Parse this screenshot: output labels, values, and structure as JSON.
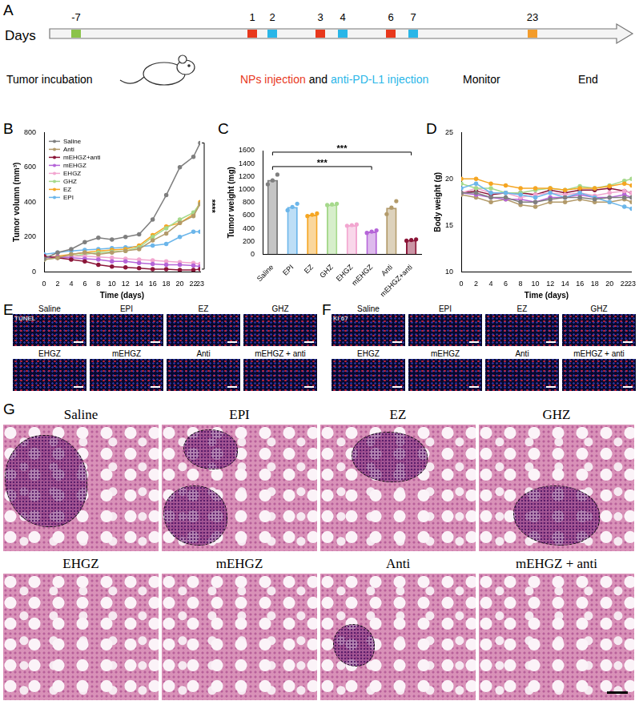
{
  "panel_labels": [
    "A",
    "B",
    "C",
    "D",
    "E",
    "F",
    "G"
  ],
  "timeline": {
    "axis_label": "Days",
    "days": [
      {
        "label": "-7",
        "color": "#8bc34a"
      },
      {
        "label": "1",
        "color": "#e8381c"
      },
      {
        "label": "2",
        "color": "#29b6e8"
      },
      {
        "label": "3",
        "color": "#e8381c"
      },
      {
        "label": "4",
        "color": "#29b6e8"
      },
      {
        "label": "6",
        "color": "#e8381c"
      },
      {
        "label": "7",
        "color": "#29b6e8"
      },
      {
        "label": "23",
        "color": "#f39c2b"
      }
    ],
    "incubation": "Tumor incubation",
    "np_text": "NPs injection",
    "np_color": "#e8381c",
    "and_text": "and",
    "anti_text": "anti-PD-L1 injection",
    "anti_color": "#29b6e8",
    "monitor": "Monitor",
    "end": "End"
  },
  "chart_data": [
    {
      "type": "line",
      "x_label": "Time (days)",
      "y_label": "Tumor volumn (mm³)",
      "x": [
        0,
        2,
        4,
        6,
        8,
        10,
        12,
        14,
        16,
        18,
        20,
        22,
        23
      ],
      "xlim": [
        0,
        23
      ],
      "xticks": [
        0,
        2,
        4,
        6,
        8,
        10,
        12,
        14,
        16,
        18,
        20,
        22,
        23
      ],
      "ylim": [
        0,
        800
      ],
      "yticks": [
        0,
        200,
        400,
        600,
        800
      ],
      "grid": false,
      "marker": "circle",
      "legend": "upper left",
      "series": [
        {
          "name": "Saline",
          "color": "#7f7f7f",
          "values": [
            75,
            110,
            130,
            170,
            195,
            185,
            200,
            215,
            300,
            440,
            600,
            660,
            740
          ]
        },
        {
          "name": "Anti",
          "color": "#b39b6b",
          "values": [
            70,
            80,
            100,
            110,
            100,
            110,
            120,
            130,
            180,
            220,
            280,
            320,
            390
          ]
        },
        {
          "name": "mEHGZ+anti",
          "color": "#8b1538",
          "values": [
            90,
            80,
            70,
            60,
            40,
            30,
            25,
            20,
            15,
            15,
            10,
            10,
            15
          ]
        },
        {
          "name": "mEHGZ",
          "color": "#b565d8",
          "values": [
            80,
            85,
            80,
            75,
            70,
            60,
            60,
            50,
            45,
            40,
            40,
            35,
            30
          ]
        },
        {
          "name": "EHGZ",
          "color": "#f2a6d0",
          "values": [
            80,
            85,
            90,
            90,
            85,
            80,
            75,
            70,
            65,
            60,
            55,
            50,
            45
          ]
        },
        {
          "name": "GHZ",
          "color": "#a6d98c",
          "values": [
            70,
            80,
            90,
            100,
            110,
            115,
            120,
            140,
            200,
            250,
            300,
            340,
            390
          ]
        },
        {
          "name": "EZ",
          "color": "#f5a623",
          "values": [
            80,
            90,
            100,
            110,
            120,
            125,
            130,
            150,
            210,
            260,
            280,
            330,
            400
          ]
        },
        {
          "name": "EPI",
          "color": "#6cb6ea",
          "values": [
            100,
            110,
            120,
            125,
            130,
            135,
            140,
            145,
            150,
            160,
            200,
            230,
            230
          ]
        }
      ],
      "annotations": [
        {
          "text": "****",
          "from": "Saline",
          "to": "mEHGZ+anti"
        }
      ]
    },
    {
      "type": "bar",
      "y_label": "Tumor weight (mg)",
      "categories": [
        "Saline",
        "EPI",
        "EZ",
        "GHZ",
        "EHGZ",
        "mEHGZ",
        "Anti",
        "mEHGZ+anti"
      ],
      "values": [
        1150,
        730,
        610,
        770,
        450,
        350,
        720,
        220
      ],
      "points": [
        [
          1080,
          1140,
          1230
        ],
        [
          680,
          730,
          780
        ],
        [
          590,
          610,
          630
        ],
        [
          760,
          770,
          780
        ],
        [
          440,
          450,
          460
        ],
        [
          330,
          350,
          370
        ],
        [
          620,
          720,
          820
        ],
        [
          210,
          220,
          230
        ]
      ],
      "colors": [
        "#7f7f7f",
        "#6cb6ea",
        "#f5a623",
        "#a6d98c",
        "#f2a6d0",
        "#b565d8",
        "#b39b6b",
        "#8b1538"
      ],
      "ylim": [
        0,
        1600
      ],
      "yticks": [
        0,
        200,
        400,
        600,
        800,
        1000,
        1200,
        1400,
        1600
      ],
      "grid": false,
      "annotations": [
        {
          "text": "***",
          "from": "Saline",
          "to": "mEHGZ"
        },
        {
          "text": "***",
          "from": "Saline",
          "to": "mEHGZ+anti"
        }
      ]
    },
    {
      "type": "line",
      "x_label": "Time (days)",
      "y_label": "Body weight (g)",
      "x": [
        0,
        2,
        4,
        6,
        8,
        10,
        12,
        14,
        16,
        18,
        20,
        22,
        23
      ],
      "xlim": [
        0,
        23
      ],
      "xticks": [
        0,
        2,
        4,
        6,
        8,
        10,
        12,
        14,
        16,
        18,
        20,
        22,
        23
      ],
      "ylim": [
        10,
        25
      ],
      "yticks": [
        10,
        15,
        20,
        25
      ],
      "grid": false,
      "marker": "circle",
      "series": [
        {
          "name": "Saline",
          "color": "#7f7f7f",
          "values": [
            18.5,
            18.5,
            18,
            18,
            17.5,
            17.5,
            17.8,
            18,
            18,
            17.8,
            18,
            18,
            18
          ]
        },
        {
          "name": "EPI",
          "color": "#6cb6ea",
          "values": [
            19,
            19.5,
            18.5,
            18.5,
            18.3,
            18,
            18.5,
            18,
            18.5,
            18,
            17.5,
            17,
            16.8
          ]
        },
        {
          "name": "EZ",
          "color": "#f5a623",
          "values": [
            20,
            20,
            19.5,
            19.3,
            19,
            19,
            19,
            18.8,
            19,
            19,
            19.2,
            19.5,
            19.3
          ]
        },
        {
          "name": "GHZ",
          "color": "#a6d98c",
          "values": [
            19.5,
            19,
            19,
            18.5,
            18.5,
            18.8,
            19,
            18.8,
            19.2,
            19,
            19.3,
            19.8,
            20
          ]
        },
        {
          "name": "EHGZ",
          "color": "#f2a6d0",
          "values": [
            18.5,
            19,
            18.5,
            18.5,
            18,
            18.3,
            18.5,
            18.3,
            18.5,
            18.2,
            18.5,
            18.7,
            18.5
          ]
        },
        {
          "name": "mEHGZ",
          "color": "#b565d8",
          "values": [
            18.5,
            18.3,
            18,
            17.8,
            17.8,
            17.5,
            18,
            18,
            18.3,
            18,
            18,
            18.3,
            18
          ]
        },
        {
          "name": "Anti",
          "color": "#b39b6b",
          "values": [
            18.3,
            18,
            17.5,
            17.8,
            17.2,
            17,
            17.5,
            17.5,
            17.8,
            17.5,
            17.5,
            17.8,
            17.5
          ]
        },
        {
          "name": "mEHGZ+anti",
          "color": "#8b1538",
          "values": [
            18.5,
            18.7,
            18.3,
            18.5,
            18.5,
            18.3,
            18.8,
            18.5,
            18.8,
            18.8,
            19,
            18.7,
            18.5
          ]
        }
      ]
    }
  ],
  "tunel": {
    "stain": "TUNEL",
    "groups": [
      "Saline",
      "EPI",
      "EZ",
      "GHZ",
      "EHGZ",
      "mEHGZ",
      "Anti",
      "mEHGZ + anti"
    ]
  },
  "ki67": {
    "stain": "KI 67",
    "groups": [
      "Saline",
      "EPI",
      "EZ",
      "GHZ",
      "EHGZ",
      "mEHGZ",
      "Anti",
      "mEHGZ + anti"
    ]
  },
  "he": {
    "groups": [
      {
        "label": "Saline",
        "tumor_outlines": 1
      },
      {
        "label": "EPI",
        "tumor_outlines": 2
      },
      {
        "label": "EZ",
        "tumor_outlines": 1
      },
      {
        "label": "GHZ",
        "tumor_outlines": 1
      },
      {
        "label": "EHGZ",
        "tumor_outlines": 0
      },
      {
        "label": "mEHGZ",
        "tumor_outlines": 0
      },
      {
        "label": "Anti",
        "tumor_outlines": 1
      },
      {
        "label": "mEHGZ + anti",
        "tumor_outlines": 0
      }
    ]
  }
}
